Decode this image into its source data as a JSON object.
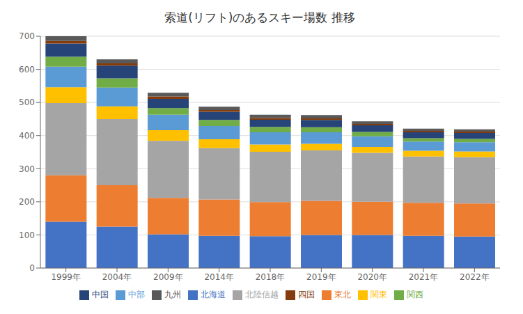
{
  "chart_data": {
    "type": "bar",
    "title": "索道(リフト)のあるスキー場数 推移",
    "categories": [
      "1999年",
      "2004年",
      "2009年",
      "2014年",
      "2018年",
      "2019年",
      "2020年",
      "2021年",
      "2022年"
    ],
    "series": [
      {
        "name": "北海道",
        "color": "#4472C4",
        "values": [
          140,
          125,
          102,
          97,
          96,
          100,
          100,
          97,
          95
        ]
      },
      {
        "name": "東北",
        "color": "#ED7D31",
        "values": [
          140,
          125,
          110,
          110,
          103,
          103,
          100,
          100,
          100
        ]
      },
      {
        "name": "北陸信越",
        "color": "#A5A5A5",
        "values": [
          218,
          200,
          172,
          155,
          152,
          152,
          148,
          140,
          140
        ]
      },
      {
        "name": "関東",
        "color": "#FFC000",
        "values": [
          48,
          38,
          32,
          27,
          22,
          20,
          18,
          17,
          17
        ]
      },
      {
        "name": "中部",
        "color": "#5B9BD5",
        "values": [
          62,
          57,
          47,
          40,
          37,
          35,
          32,
          28,
          28
        ]
      },
      {
        "name": "関西",
        "color": "#70AD47",
        "values": [
          30,
          28,
          20,
          18,
          16,
          15,
          13,
          10,
          10
        ]
      },
      {
        "name": "中国",
        "color": "#264478",
        "values": [
          40,
          38,
          28,
          25,
          22,
          22,
          20,
          18,
          18
        ]
      },
      {
        "name": "四国",
        "color": "#843C0C",
        "values": [
          8,
          7,
          7,
          5,
          5,
          5,
          4,
          4,
          4
        ]
      },
      {
        "name": "九州",
        "color": "#595959",
        "values": [
          14,
          12,
          11,
          10,
          10,
          10,
          8,
          7,
          7
        ]
      }
    ],
    "ylim": [
      0,
      700
    ],
    "yticks": [
      0,
      100,
      200,
      300,
      400,
      500,
      600,
      700
    ],
    "stacked": true,
    "grid": true,
    "legend": "bottom"
  }
}
